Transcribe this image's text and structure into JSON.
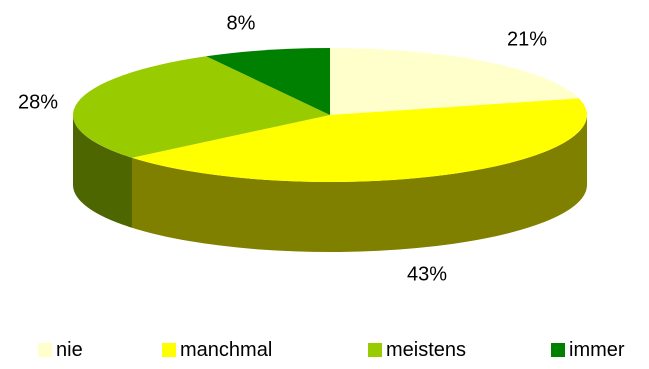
{
  "chart_data": {
    "type": "pie",
    "style": "3d",
    "categories": [
      "nie",
      "manchmal",
      "meistens",
      "immer"
    ],
    "values": [
      21,
      43,
      28,
      8
    ],
    "data_labels": [
      "21%",
      "43%",
      "28%",
      "8%"
    ],
    "colors": [
      "#FFFFCC",
      "#FFFF00",
      "#99CC00",
      "#008000"
    ],
    "side_colors": [
      "#808000",
      "#808000",
      "#4D6600",
      "#004000"
    ],
    "legend_position": "bottom"
  }
}
